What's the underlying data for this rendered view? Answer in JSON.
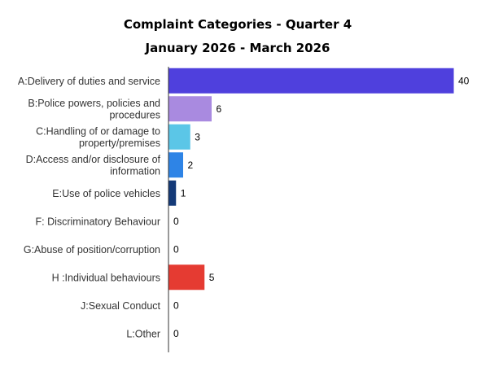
{
  "chart_data": {
    "type": "bar",
    "orientation": "horizontal",
    "title": "Complaint Categories - Quarter 4",
    "subtitle": "January 2026 - March 2026",
    "xlabel": "",
    "ylabel": "",
    "xlim": [
      0,
      40
    ],
    "grid": false,
    "legend": "none",
    "categories": [
      [
        "A:Delivery of duties and service"
      ],
      [
        "B:Police powers, policies and",
        "procedures"
      ],
      [
        "C:Handling of or damage to",
        "property/premises"
      ],
      [
        "D:Access and/or disclosure of",
        "information"
      ],
      [
        "E:Use of police vehicles"
      ],
      [
        "F: Discriminatory Behaviour"
      ],
      [
        "G:Abuse of position/corruption"
      ],
      [
        "H :Individual behaviours"
      ],
      [
        "J:Sexual Conduct"
      ],
      [
        "L:Other"
      ]
    ],
    "values": [
      40,
      6,
      3,
      2,
      1,
      0,
      0,
      5,
      0,
      0
    ],
    "data_labels": [
      "40",
      "6",
      "3",
      "2",
      "1",
      "0",
      "0",
      "5",
      "0",
      "0"
    ],
    "colors": [
      "#4f40dd",
      "#a98ae0",
      "#5bc6e7",
      "#2e84e6",
      "#143a78",
      "#999999",
      "#999999",
      "#e53b32",
      "#999999",
      "#999999"
    ]
  }
}
